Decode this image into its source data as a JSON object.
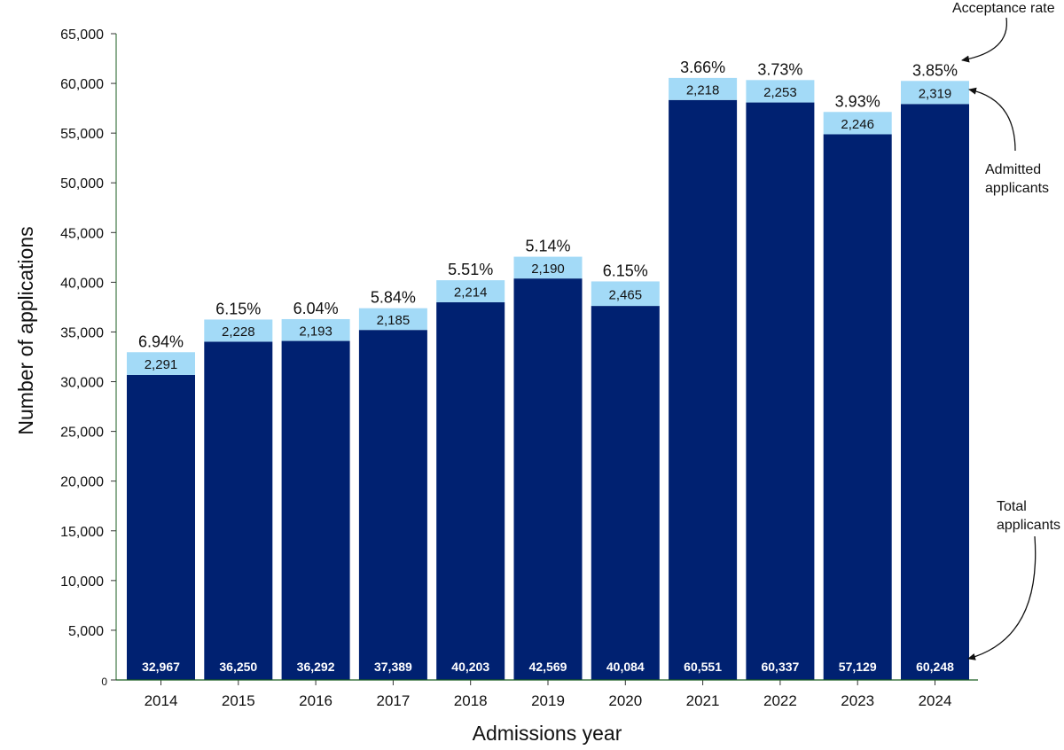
{
  "chart_data": {
    "type": "bar",
    "stacked": true,
    "xlabel": "Admissions year",
    "ylabel": "Number of applications",
    "ylim": [
      0,
      65000
    ],
    "yticks": [
      0,
      5000,
      10000,
      15000,
      20000,
      25000,
      30000,
      35000,
      40000,
      45000,
      50000,
      55000,
      60000,
      65000
    ],
    "ytick_labels": [
      "0",
      "5,000",
      "10,000",
      "15,000",
      "20,000",
      "25,000",
      "30,000",
      "35,000",
      "40,000",
      "45,000",
      "50,000",
      "55,000",
      "60,000",
      "65,000"
    ],
    "categories": [
      "2014",
      "2015",
      "2016",
      "2017",
      "2018",
      "2019",
      "2020",
      "2021",
      "2022",
      "2023",
      "2024"
    ],
    "total_applicants": [
      32967,
      36250,
      36292,
      37389,
      40203,
      42569,
      40084,
      60551,
      60337,
      57129,
      60248
    ],
    "total_labels": [
      "32,967",
      "36,250",
      "36,292",
      "37,389",
      "40,203",
      "42,569",
      "40,084",
      "60,551",
      "60,337",
      "57,129",
      "60,248"
    ],
    "admitted_applicants": [
      2291,
      2228,
      2193,
      2185,
      2214,
      2190,
      2465,
      2218,
      2253,
      2246,
      2319
    ],
    "admitted_labels": [
      "2,291",
      "2,228",
      "2,193",
      "2,185",
      "2,214",
      "2,190",
      "2,465",
      "2,218",
      "2,253",
      "2,246",
      "2,319"
    ],
    "acceptance_rate_labels": [
      "6.94%",
      "6.15%",
      "6.04%",
      "5.84%",
      "5.51%",
      "5.14%",
      "6.15%",
      "3.66%",
      "3.73%",
      "3.93%",
      "3.85%"
    ],
    "colors": {
      "total": "#002171",
      "admitted": "#a3daf7",
      "axis": "#1b5e20"
    },
    "annotations": {
      "acceptance_rate": "Acceptance rate",
      "admitted_line1": "Admitted",
      "admitted_line2": "applicants",
      "total_line1": "Total",
      "total_line2": "applicants"
    }
  }
}
